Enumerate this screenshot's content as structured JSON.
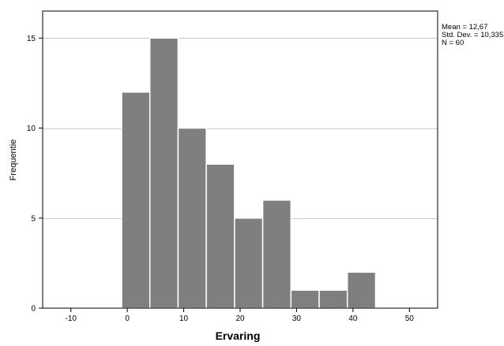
{
  "chart_data": {
    "type": "bar",
    "subtype": "histogram",
    "title": "",
    "xlabel": "Ervaring",
    "ylabel": "Frequentie",
    "xlim": [
      -15,
      55
    ],
    "ylim": [
      0,
      16.5
    ],
    "x_ticks": [
      -10,
      0,
      10,
      20,
      30,
      40,
      50
    ],
    "y_ticks": [
      0,
      5,
      10,
      15
    ],
    "x_tick_labels": [
      "-10",
      "0",
      "10",
      "20",
      "30",
      "40",
      "50"
    ],
    "y_tick_labels": [
      "0",
      "5",
      "10",
      "15"
    ],
    "grid": "horizontal",
    "bins": [
      {
        "start": -1,
        "end": 4,
        "count": 12
      },
      {
        "start": 4,
        "end": 9,
        "count": 15
      },
      {
        "start": 9,
        "end": 14,
        "count": 10
      },
      {
        "start": 14,
        "end": 19,
        "count": 8
      },
      {
        "start": 19,
        "end": 24,
        "count": 5
      },
      {
        "start": 24,
        "end": 29,
        "count": 6
      },
      {
        "start": 29,
        "end": 34,
        "count": 1
      },
      {
        "start": 34,
        "end": 39,
        "count": 1
      },
      {
        "start": 39,
        "end": 44,
        "count": 2
      }
    ],
    "stats_box": [
      "Mean = 12,67",
      "Std. Dev. = 10,335",
      "N = 60"
    ],
    "colors": {
      "bar_fill": "#7f7f7f",
      "bar_stroke": "#ffffff",
      "gridline": "#c8c8c8",
      "frame": "#000000"
    }
  }
}
